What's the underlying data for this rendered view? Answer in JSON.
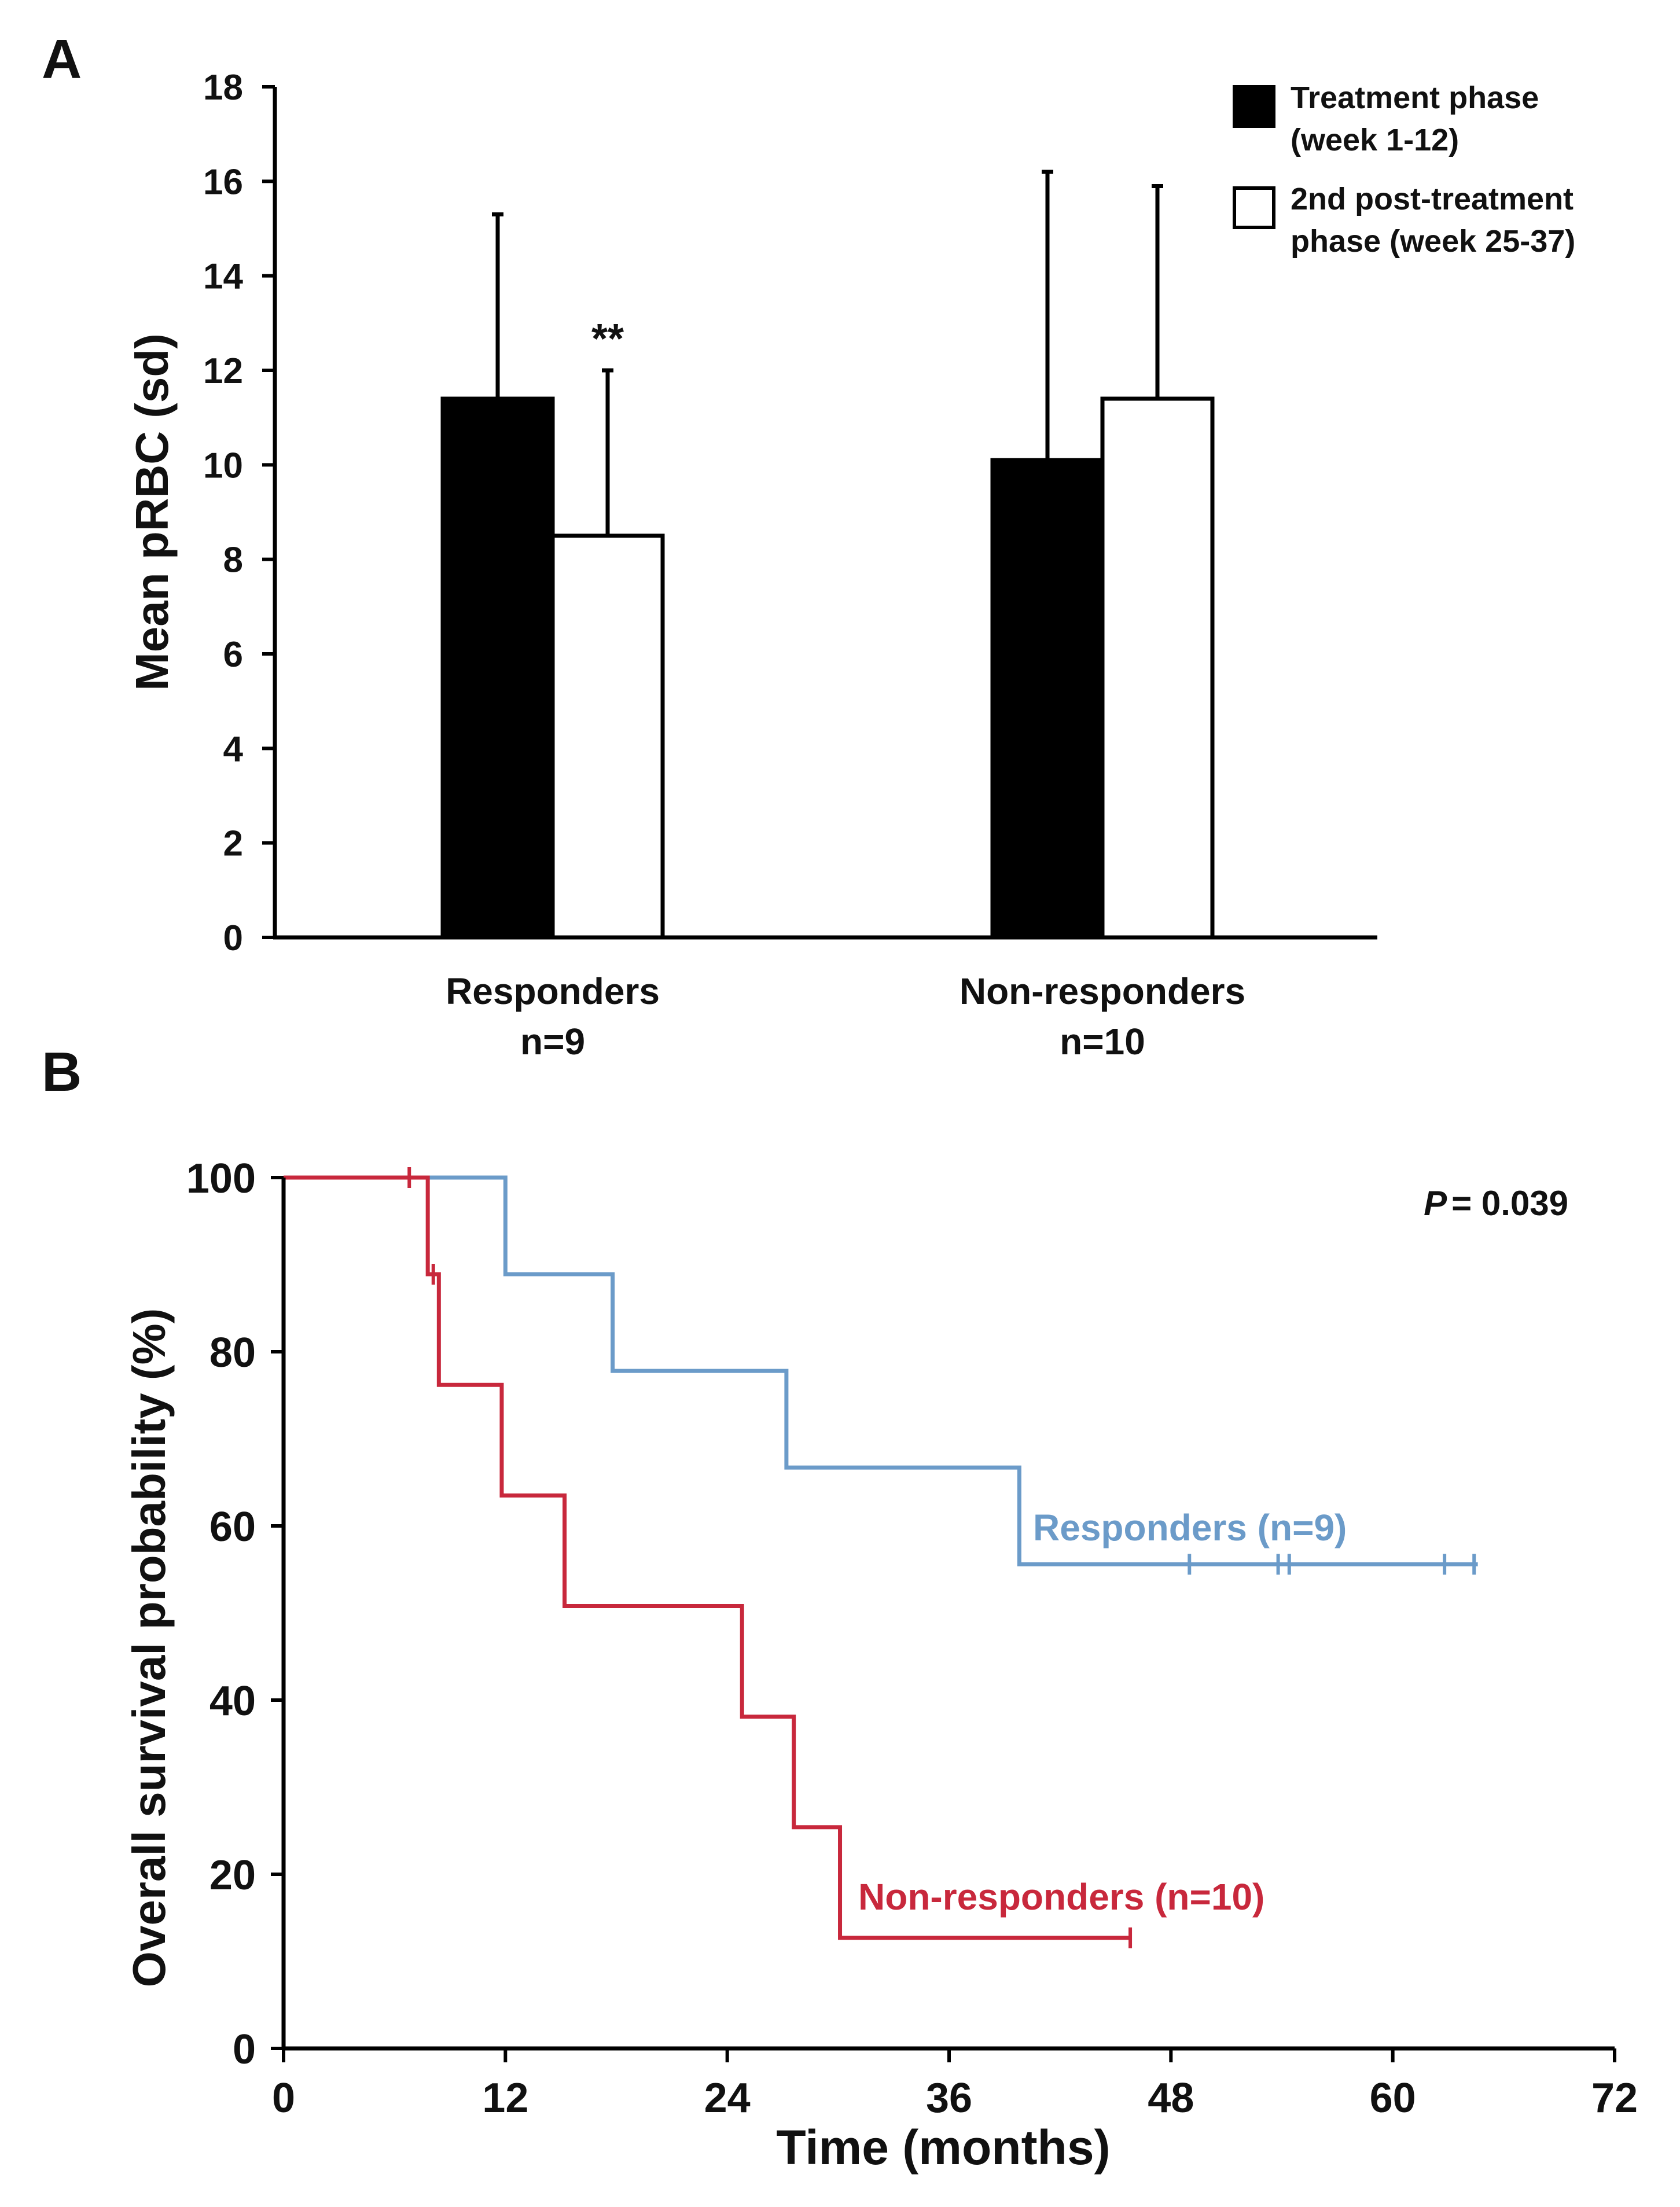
{
  "chart_data": [
    {
      "panel": "A",
      "type": "bar",
      "ylabel": "Mean pRBC (sd)",
      "ylim": [
        0,
        18
      ],
      "yticks": [
        0,
        2,
        4,
        6,
        8,
        10,
        12,
        14,
        16,
        18
      ],
      "categories": [
        {
          "line1": "Responders",
          "line2": "n=9"
        },
        {
          "line1": "Non-responders",
          "line2": "n=10"
        }
      ],
      "series": [
        {
          "name_line1": "Treatment phase",
          "name_line2": "(week 1-12)",
          "fill": "#000000",
          "values": [
            11.4,
            10.1
          ],
          "sd": [
            3.9,
            6.1
          ]
        },
        {
          "name_line1": "2nd post-treatment",
          "name_line2": "phase (week 25-37)",
          "fill": "#ffffff",
          "values": [
            8.5,
            11.4
          ],
          "sd": [
            3.5,
            4.5
          ]
        }
      ],
      "annotation": {
        "text": "**",
        "category_index": 0,
        "series_index": 1
      }
    },
    {
      "panel": "B",
      "type": "line",
      "subtype": "kaplan-meier",
      "xlabel": "Time (months)",
      "ylabel": "Overall survival probability (%)",
      "xlim": [
        0,
        72
      ],
      "ylim": [
        0,
        100
      ],
      "xticks": [
        0,
        12,
        24,
        36,
        48,
        60,
        72
      ],
      "yticks": [
        0,
        20,
        40,
        60,
        80,
        100
      ],
      "p_label": "P",
      "p_value": "= 0.039",
      "series": [
        {
          "name": "Responders (n=9)",
          "color": "#6b9bc9",
          "steps": [
            [
              0,
              100
            ],
            [
              12,
              88.9
            ],
            [
              17.8,
              77.8
            ],
            [
              27.2,
              66.7
            ],
            [
              39.8,
              55.6
            ]
          ],
          "end_x": 64.6,
          "censored": [
            49,
            53.8,
            54.4,
            62.8,
            64.4
          ]
        },
        {
          "name": "Non-responders (n=10)",
          "color": "#c8283c",
          "steps": [
            [
              0,
              100
            ],
            [
              7.8,
              88.9
            ],
            [
              8.4,
              76.2
            ],
            [
              11.8,
              63.5
            ],
            [
              15.2,
              50.8
            ],
            [
              24.8,
              38.1
            ],
            [
              27.6,
              25.4
            ],
            [
              30.1,
              12.7
            ]
          ],
          "end_x": 45.8,
          "censored": [
            6.8,
            8.1,
            45.8
          ]
        }
      ]
    }
  ],
  "panels": {
    "a_label": "A",
    "b_label": "B"
  }
}
